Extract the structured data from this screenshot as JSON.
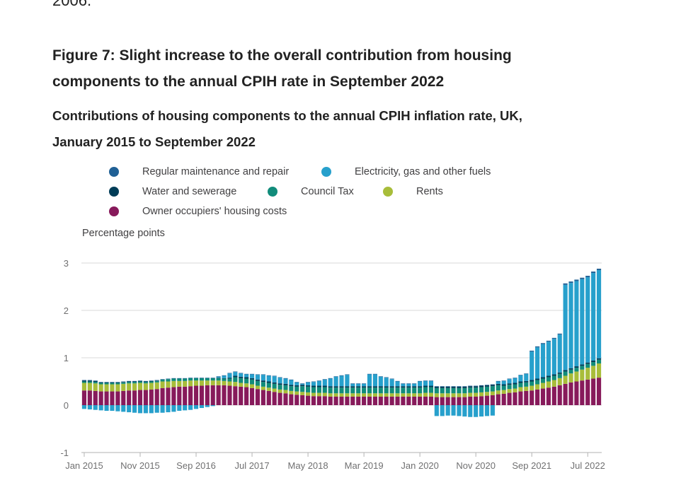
{
  "page": {
    "previous_text": "2006.",
    "figure_title": "Figure 7: Slight increase to the overall contribution from housing components to the annual CPIH rate in September 2022"
  },
  "colors": {
    "regular_maintenance": "#206095",
    "electricity_gas": "#27a0cc",
    "water_sewerage": "#003c57",
    "council_tax": "#118c7b",
    "rents": "#a8bd3a",
    "owner_occupiers": "#871a5b",
    "grid": "#d9d9d9",
    "axis_text": "#707071"
  },
  "chart_data": {
    "type": "bar",
    "stacked": true,
    "title": "Contributions of housing components to the annual CPIH inflation rate, UK, January 2015 to September 2022",
    "ylabel": "Percentage points",
    "ylim": [
      -1,
      3
    ],
    "yticks": [
      -1,
      0,
      1,
      2,
      3
    ],
    "grid": true,
    "legend_position": "top",
    "x_tick_labels": [
      "Jan 2015",
      "Nov 2015",
      "Sep 2016",
      "Jul 2017",
      "May 2018",
      "Mar 2019",
      "Jan 2020",
      "Nov 2020",
      "Sep 2021",
      "Jul 2022"
    ],
    "x_tick_index": [
      0,
      10,
      20,
      30,
      40,
      50,
      60,
      70,
      80,
      90
    ],
    "categories": [
      "Jan 2015",
      "Feb 2015",
      "Mar 2015",
      "Apr 2015",
      "May 2015",
      "Jun 2015",
      "Jul 2015",
      "Aug 2015",
      "Sep 2015",
      "Oct 2015",
      "Nov 2015",
      "Dec 2015",
      "Jan 2016",
      "Feb 2016",
      "Mar 2016",
      "Apr 2016",
      "May 2016",
      "Jun 2016",
      "Jul 2016",
      "Aug 2016",
      "Sep 2016",
      "Oct 2016",
      "Nov 2016",
      "Dec 2016",
      "Jan 2017",
      "Feb 2017",
      "Mar 2017",
      "Apr 2017",
      "May 2017",
      "Jun 2017",
      "Jul 2017",
      "Aug 2017",
      "Sep 2017",
      "Oct 2017",
      "Nov 2017",
      "Dec 2017",
      "Jan 2018",
      "Feb 2018",
      "Mar 2018",
      "Apr 2018",
      "May 2018",
      "Jun 2018",
      "Jul 2018",
      "Aug 2018",
      "Sep 2018",
      "Oct 2018",
      "Nov 2018",
      "Dec 2018",
      "Jan 2019",
      "Feb 2019",
      "Mar 2019",
      "Apr 2019",
      "May 2019",
      "Jun 2019",
      "Jul 2019",
      "Aug 2019",
      "Sep 2019",
      "Oct 2019",
      "Nov 2019",
      "Dec 2019",
      "Jan 2020",
      "Feb 2020",
      "Mar 2020",
      "Apr 2020",
      "May 2020",
      "Jun 2020",
      "Jul 2020",
      "Aug 2020",
      "Sep 2020",
      "Oct 2020",
      "Nov 2020",
      "Dec 2020",
      "Jan 2021",
      "Feb 2021",
      "Mar 2021",
      "Apr 2021",
      "May 2021",
      "Jun 2021",
      "Jul 2021",
      "Aug 2021",
      "Sep 2021",
      "Oct 2021",
      "Nov 2021",
      "Dec 2021",
      "Jan 2022",
      "Feb 2022",
      "Mar 2022",
      "Apr 2022",
      "May 2022",
      "Jun 2022",
      "Jul 2022",
      "Aug 2022",
      "Sep 2022"
    ],
    "series": [
      {
        "name": "Owner occupiers' housing costs",
        "color_key": "owner_occupiers",
        "values": [
          0.31,
          0.31,
          0.3,
          0.29,
          0.29,
          0.29,
          0.29,
          0.3,
          0.31,
          0.31,
          0.32,
          0.32,
          0.33,
          0.34,
          0.36,
          0.37,
          0.38,
          0.39,
          0.39,
          0.4,
          0.41,
          0.41,
          0.42,
          0.42,
          0.42,
          0.42,
          0.41,
          0.4,
          0.39,
          0.38,
          0.36,
          0.34,
          0.32,
          0.3,
          0.28,
          0.26,
          0.25,
          0.23,
          0.22,
          0.21,
          0.2,
          0.19,
          0.19,
          0.19,
          0.18,
          0.18,
          0.18,
          0.18,
          0.18,
          0.18,
          0.18,
          0.18,
          0.18,
          0.18,
          0.18,
          0.18,
          0.18,
          0.18,
          0.18,
          0.18,
          0.18,
          0.18,
          0.18,
          0.17,
          0.17,
          0.17,
          0.17,
          0.17,
          0.17,
          0.18,
          0.18,
          0.19,
          0.2,
          0.21,
          0.23,
          0.24,
          0.26,
          0.27,
          0.29,
          0.3,
          0.31,
          0.33,
          0.35,
          0.37,
          0.39,
          0.42,
          0.45,
          0.48,
          0.5,
          0.52,
          0.54,
          0.56,
          0.58
        ]
      },
      {
        "name": "Rents",
        "color_key": "rents",
        "values": [
          0.16,
          0.16,
          0.16,
          0.15,
          0.15,
          0.15,
          0.15,
          0.15,
          0.15,
          0.15,
          0.15,
          0.14,
          0.14,
          0.14,
          0.14,
          0.13,
          0.13,
          0.12,
          0.12,
          0.12,
          0.11,
          0.11,
          0.1,
          0.1,
          0.1,
          0.09,
          0.09,
          0.09,
          0.08,
          0.08,
          0.08,
          0.07,
          0.07,
          0.07,
          0.07,
          0.07,
          0.07,
          0.07,
          0.07,
          0.07,
          0.07,
          0.07,
          0.07,
          0.07,
          0.07,
          0.07,
          0.07,
          0.07,
          0.07,
          0.07,
          0.07,
          0.07,
          0.07,
          0.07,
          0.07,
          0.07,
          0.07,
          0.07,
          0.07,
          0.07,
          0.07,
          0.08,
          0.08,
          0.08,
          0.08,
          0.08,
          0.08,
          0.08,
          0.08,
          0.08,
          0.08,
          0.08,
          0.08,
          0.08,
          0.08,
          0.08,
          0.08,
          0.08,
          0.09,
          0.09,
          0.1,
          0.11,
          0.12,
          0.13,
          0.14,
          0.15,
          0.17,
          0.19,
          0.21,
          0.23,
          0.25,
          0.27,
          0.3
        ]
      },
      {
        "name": "Council Tax",
        "color_key": "council_tax",
        "values": [
          0.03,
          0.03,
          0.03,
          0.03,
          0.03,
          0.03,
          0.03,
          0.03,
          0.03,
          0.03,
          0.03,
          0.03,
          0.03,
          0.03,
          0.04,
          0.05,
          0.05,
          0.05,
          0.05,
          0.05,
          0.05,
          0.05,
          0.05,
          0.05,
          0.05,
          0.05,
          0.06,
          0.1,
          0.1,
          0.1,
          0.1,
          0.1,
          0.1,
          0.1,
          0.1,
          0.1,
          0.1,
          0.1,
          0.1,
          0.12,
          0.12,
          0.12,
          0.12,
          0.12,
          0.12,
          0.12,
          0.12,
          0.12,
          0.12,
          0.12,
          0.12,
          0.12,
          0.12,
          0.12,
          0.12,
          0.12,
          0.12,
          0.12,
          0.12,
          0.12,
          0.12,
          0.12,
          0.12,
          0.11,
          0.11,
          0.11,
          0.11,
          0.11,
          0.11,
          0.11,
          0.11,
          0.11,
          0.11,
          0.11,
          0.11,
          0.09,
          0.09,
          0.09,
          0.09,
          0.09,
          0.09,
          0.09,
          0.09,
          0.09,
          0.09,
          0.09,
          0.09,
          0.08,
          0.08,
          0.08,
          0.08,
          0.08,
          0.08
        ]
      },
      {
        "name": "Water and sewerage",
        "color_key": "water_sewerage",
        "values": [
          0.02,
          0.02,
          0.02,
          0.01,
          0.01,
          0.01,
          0.01,
          0.01,
          0.01,
          0.01,
          0.01,
          0.01,
          0.01,
          0.01,
          0.0,
          0.0,
          0.0,
          0.0,
          0.0,
          0.0,
          0.0,
          0.0,
          0.0,
          0.0,
          0.01,
          0.01,
          0.02,
          0.03,
          0.03,
          0.03,
          0.03,
          0.03,
          0.03,
          0.03,
          0.03,
          0.03,
          0.03,
          0.03,
          0.03,
          0.03,
          0.03,
          0.03,
          0.03,
          0.03,
          0.03,
          0.03,
          0.03,
          0.03,
          0.03,
          0.03,
          0.03,
          0.03,
          0.03,
          0.03,
          0.03,
          0.03,
          0.03,
          0.03,
          0.03,
          0.03,
          0.03,
          0.03,
          0.03,
          0.03,
          0.03,
          0.03,
          0.03,
          0.03,
          0.03,
          0.03,
          0.03,
          0.03,
          0.03,
          0.03,
          0.03,
          0.03,
          0.03,
          0.03,
          0.03,
          0.03,
          0.03,
          0.03,
          0.03,
          0.03,
          0.03,
          0.03,
          0.03,
          0.03,
          0.03,
          0.03,
          0.03,
          0.03,
          0.03
        ]
      },
      {
        "name": "Electricity, gas and other fuels",
        "color_key": "electricity_gas",
        "values": [
          -0.08,
          -0.09,
          -0.1,
          -0.11,
          -0.12,
          -0.12,
          -0.13,
          -0.14,
          -0.15,
          -0.16,
          -0.17,
          -0.17,
          -0.17,
          -0.16,
          -0.16,
          -0.15,
          -0.14,
          -0.12,
          -0.11,
          -0.1,
          -0.08,
          -0.06,
          -0.04,
          -0.02,
          0.02,
          0.05,
          0.09,
          0.08,
          0.07,
          0.06,
          0.08,
          0.1,
          0.12,
          0.12,
          0.13,
          0.12,
          0.11,
          0.1,
          0.06,
          0.02,
          0.06,
          0.08,
          0.1,
          0.13,
          0.16,
          0.2,
          0.22,
          0.24,
          0.05,
          0.05,
          0.05,
          0.25,
          0.25,
          0.2,
          0.18,
          0.15,
          0.1,
          0.05,
          0.05,
          0.05,
          0.1,
          0.1,
          0.1,
          -0.23,
          -0.23,
          -0.22,
          -0.22,
          -0.23,
          -0.24,
          -0.25,
          -0.25,
          -0.24,
          -0.23,
          -0.22,
          0.05,
          0.07,
          0.09,
          0.1,
          0.13,
          0.15,
          0.6,
          0.66,
          0.7,
          0.72,
          0.75,
          0.8,
          1.8,
          1.8,
          1.8,
          1.8,
          1.8,
          1.85,
          1.86
        ]
      },
      {
        "name": "Regular maintenance and repair",
        "color_key": "regular_maintenance",
        "values": [
          0.01,
          0.01,
          0.01,
          0.01,
          0.01,
          0.01,
          0.01,
          0.01,
          0.01,
          0.01,
          0.01,
          0.01,
          0.01,
          0.01,
          0.01,
          0.01,
          0.01,
          0.01,
          0.01,
          0.01,
          0.01,
          0.01,
          0.01,
          0.01,
          0.01,
          0.01,
          0.01,
          0.01,
          0.01,
          0.01,
          0.01,
          0.01,
          0.01,
          0.01,
          0.01,
          0.01,
          0.01,
          0.01,
          0.01,
          0.01,
          0.01,
          0.01,
          0.01,
          0.01,
          0.01,
          0.01,
          0.01,
          0.01,
          0.01,
          0.01,
          0.01,
          0.01,
          0.01,
          0.01,
          0.01,
          0.01,
          0.01,
          0.01,
          0.01,
          0.01,
          0.01,
          0.01,
          0.01,
          0.01,
          0.01,
          0.01,
          0.01,
          0.01,
          0.01,
          0.01,
          0.01,
          0.01,
          0.01,
          0.01,
          0.01,
          0.01,
          0.01,
          0.01,
          0.01,
          0.01,
          0.02,
          0.02,
          0.02,
          0.02,
          0.02,
          0.02,
          0.03,
          0.03,
          0.03,
          0.03,
          0.03,
          0.03,
          0.03
        ]
      }
    ],
    "legend_entries": [
      {
        "label": "Regular maintenance and repair",
        "color_key": "regular_maintenance"
      },
      {
        "label": "Electricity, gas and other fuels",
        "color_key": "electricity_gas"
      },
      {
        "label": "Water and sewerage",
        "color_key": "water_sewerage"
      },
      {
        "label": "Council Tax",
        "color_key": "council_tax"
      },
      {
        "label": "Rents",
        "color_key": "rents"
      },
      {
        "label": "Owner occupiers' housing costs",
        "color_key": "owner_occupiers"
      }
    ]
  }
}
